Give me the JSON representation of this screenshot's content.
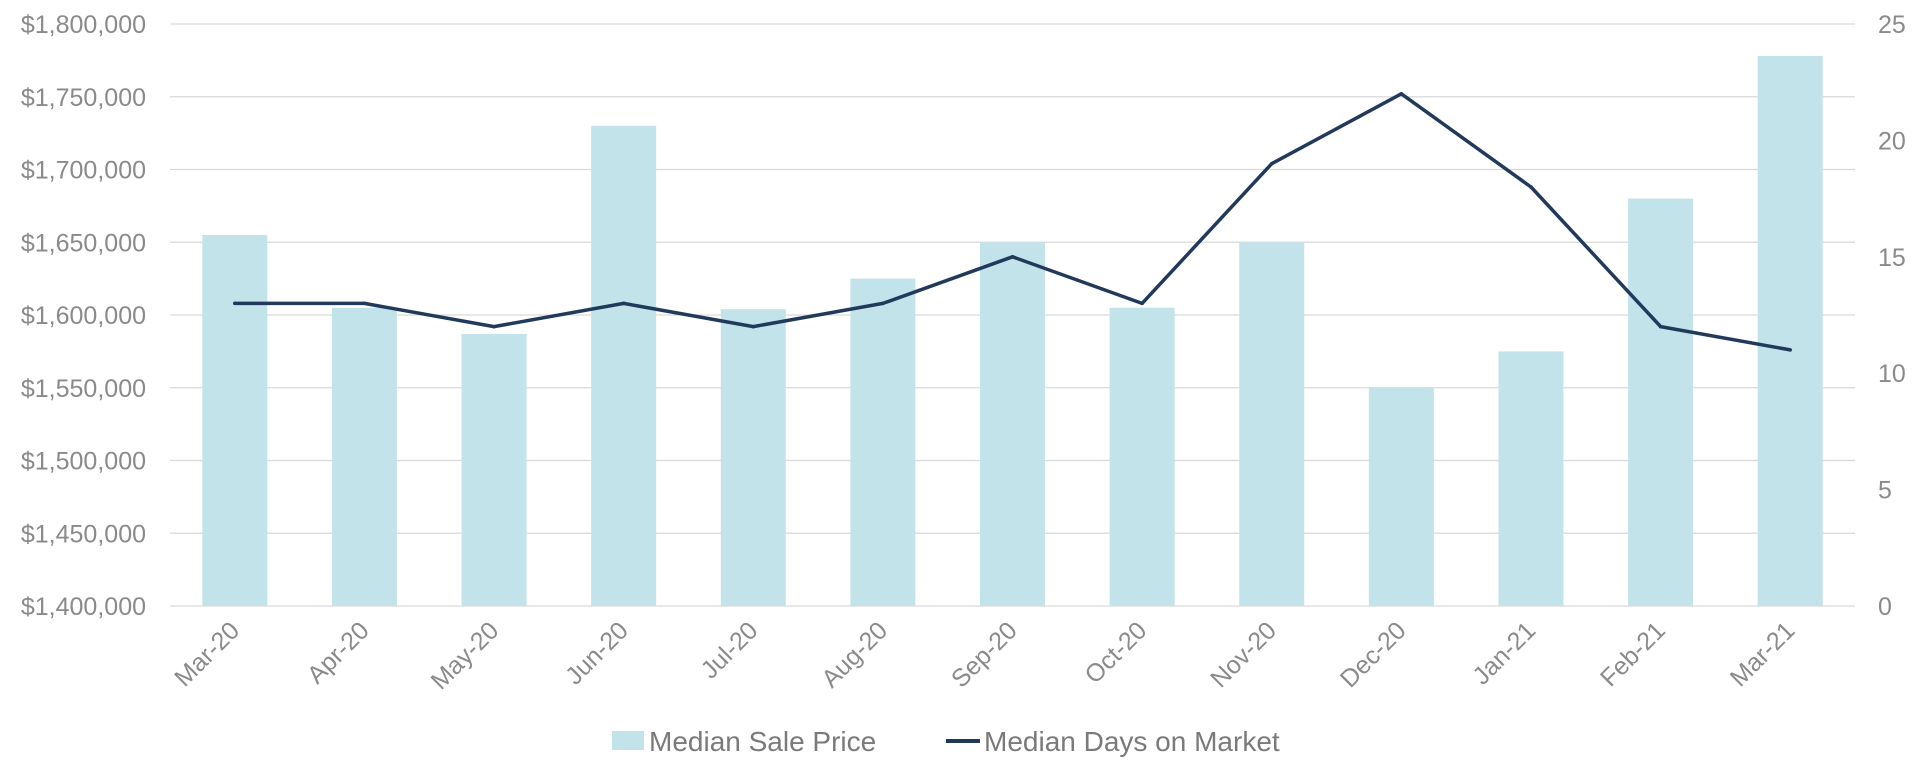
{
  "chart_data": {
    "type": "bar",
    "categories": [
      "Mar-20",
      "Apr-20",
      "May-20",
      "Jun-20",
      "Jul-20",
      "Aug-20",
      "Sep-20",
      "Oct-20",
      "Nov-20",
      "Dec-20",
      "Jan-21",
      "Feb-21",
      "Mar-21"
    ],
    "series": [
      {
        "name": "Median Sale Price",
        "type": "bar",
        "axis": "left",
        "color": "#c2e3ea",
        "values": [
          1655000,
          1605000,
          1587000,
          1730000,
          1604000,
          1625000,
          1650000,
          1605000,
          1650000,
          1550000,
          1575000,
          1680000,
          1778000
        ]
      },
      {
        "name": "Median Days on Market",
        "type": "line",
        "axis": "right",
        "color": "#213a5c",
        "values": [
          13,
          13,
          12,
          13,
          12,
          13,
          15,
          13,
          19,
          22,
          18,
          12,
          11
        ]
      }
    ],
    "ylim_left": [
      1400000,
      1800000
    ],
    "ylim_right": [
      0,
      25
    ],
    "left_ticks": [
      "$1,400,000",
      "$1,450,000",
      "$1,500,000",
      "$1,550,000",
      "$1,600,000",
      "$1,650,000",
      "$1,700,000",
      "$1,750,000",
      "$1,800,000"
    ],
    "right_ticks": [
      "0",
      "5",
      "10",
      "15",
      "20",
      "25"
    ],
    "title": "",
    "xlabel": "",
    "ylabel": "",
    "grid": true,
    "legend_position": "bottom-center"
  }
}
